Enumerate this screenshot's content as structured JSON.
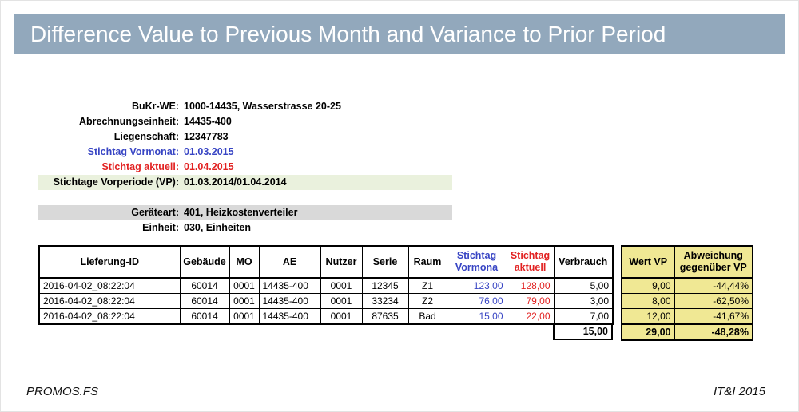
{
  "title": "Difference Value to Previous Month and Variance to Prior Period",
  "colors": {
    "title_bar": "#92A8BC",
    "blue_accent": "#3845C4",
    "red_accent": "#E22222",
    "green_highlight": "#EAF1DD",
    "gray_highlight": "#D9D9D9",
    "yellow_highlight": "#F0E894"
  },
  "info": {
    "rows": [
      {
        "label": "BuKr-WE:",
        "value": "1000-14435, Wasserstrasse 20-25"
      },
      {
        "label": "Abrechnungseinheit:",
        "value": "14435-400"
      },
      {
        "label": "Liegenschaft:",
        "value": "12347783"
      },
      {
        "label": "Stichtag Vormonat:",
        "value": "01.03.2015"
      },
      {
        "label": "Stichtag aktuell:",
        "value": "01.04.2015"
      },
      {
        "label": "Stichtage Vorperiode (VP):",
        "value": "01.03.2014/01.04.2014"
      },
      {
        "label": "Geräteart:",
        "value": "401, Heizkostenverteiler"
      },
      {
        "label": "Einheit:",
        "value": "030, Einheiten"
      }
    ]
  },
  "table": {
    "headers": [
      "Lieferung-ID",
      "Gebäude",
      "MO",
      "AE",
      "Nutzer",
      "Serie",
      "Raum",
      "Stichtag Vormona",
      "Stichtag aktuell",
      "Verbrauch"
    ],
    "vp_headers": [
      "Wert VP",
      "Abweichung gegenüber VP"
    ],
    "column_order": [
      "lieferung_id",
      "gebaeude",
      "mo",
      "ae",
      "nutzer",
      "serie",
      "raum",
      "stichtag_vormonat",
      "stichtag_aktuell",
      "verbrauch"
    ],
    "vp_column_order": [
      "wert_vp",
      "abweichung_vp"
    ],
    "rows": [
      {
        "lieferung_id": "2016-04-02_08:22:04",
        "gebaeude": "60014",
        "mo": "0001",
        "ae": "14435-400",
        "nutzer": "0001",
        "serie": "12345",
        "raum": "Z1",
        "stichtag_vormonat": "123,00",
        "stichtag_aktuell": "128,00",
        "verbrauch": "5,00",
        "wert_vp": "9,00",
        "abweichung_vp": "-44,44%"
      },
      {
        "lieferung_id": "2016-04-02_08:22:04",
        "gebaeude": "60014",
        "mo": "0001",
        "ae": "14435-400",
        "nutzer": "0001",
        "serie": "33234",
        "raum": "Z2",
        "stichtag_vormonat": "76,00",
        "stichtag_aktuell": "79,00",
        "verbrauch": "3,00",
        "wert_vp": "8,00",
        "abweichung_vp": "-62,50%"
      },
      {
        "lieferung_id": "2016-04-02_08:22:04",
        "gebaeude": "60014",
        "mo": "0001",
        "ae": "14435-400",
        "nutzer": "0001",
        "serie": "87635",
        "raum": "Bad",
        "stichtag_vormonat": "15,00",
        "stichtag_aktuell": "22,00",
        "verbrauch": "7,00",
        "wert_vp": "12,00",
        "abweichung_vp": "-41,67%"
      }
    ],
    "totals": {
      "verbrauch": "15,00",
      "wert_vp": "29,00",
      "abweichung_vp": "-48,28%"
    }
  },
  "footer": {
    "left": "PROMOS.FS",
    "right": "IT&I 2015"
  }
}
